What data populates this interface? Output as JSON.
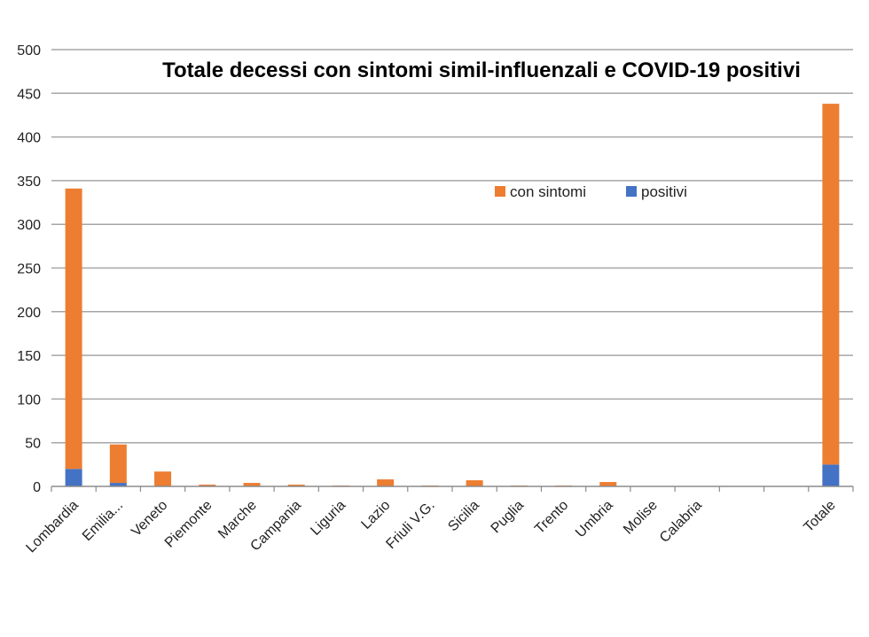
{
  "chart_data": {
    "type": "bar",
    "stacked": true,
    "title": "Totale decessi con sintomi simil-influenzali e COVID-19 positivi",
    "xlabel": "",
    "ylabel": "",
    "ylim": [
      0,
      500
    ],
    "yticks": [
      0,
      50,
      100,
      150,
      200,
      250,
      300,
      350,
      400,
      450,
      500
    ],
    "grid": true,
    "legend_position": "upper-right-inside",
    "categories": [
      "Lombardia",
      "Emilia...",
      "Veneto",
      "Piemonte",
      "Marche",
      "Campania",
      "Liguria",
      "Lazio",
      "Friuli V.G.",
      "Sicilia",
      "Puglia",
      "Trento",
      "Umbria",
      "Molise",
      "Calabria",
      "",
      "",
      "Totale"
    ],
    "series": [
      {
        "name": "positivi",
        "color": "#4472C4",
        "values": [
          20,
          4,
          0,
          0,
          0,
          0,
          0,
          0,
          0,
          0,
          0,
          0,
          0,
          0,
          0,
          0,
          0,
          25
        ]
      },
      {
        "name": "con sintomi",
        "color": "#ED7D31",
        "values": [
          321,
          44,
          17,
          2,
          4,
          2,
          1,
          8,
          1,
          7,
          1,
          1,
          5,
          0,
          0,
          0,
          0,
          413
        ]
      }
    ],
    "legend": [
      "con sintomi",
      "positivi"
    ]
  }
}
